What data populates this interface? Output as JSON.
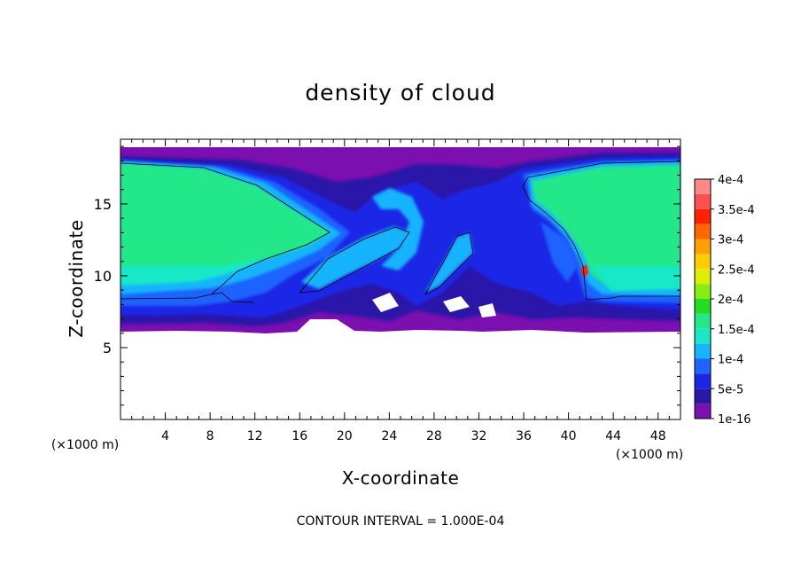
{
  "chart_data": {
    "type": "heatmap",
    "title": "density of cloud",
    "xlabel": "X-coordinate",
    "ylabel": "Z-coordinate",
    "x_unit": "(×1000 m)",
    "z_unit": "(×1000 m)",
    "xlim": [
      0,
      50
    ],
    "ylim": [
      0,
      19.5
    ],
    "x_ticks": [
      4,
      8,
      12,
      16,
      20,
      24,
      28,
      32,
      36,
      40,
      44,
      48
    ],
    "y_ticks": [
      5,
      10,
      15
    ],
    "grid": false,
    "colorbar": {
      "levels": [
        1e-16,
        2.5e-05,
        5e-05,
        7.5e-05,
        0.0001,
        0.000125,
        0.00015,
        0.000175,
        0.0002,
        0.000225,
        0.00025,
        0.000275,
        0.0003,
        0.000325,
        0.00035,
        0.000375,
        0.0004
      ],
      "tick_labels": [
        "1e-16",
        "5e-5",
        "1e-4",
        "1.5e-4",
        "2e-4",
        "2.5e-4",
        "3e-4",
        "3.5e-4",
        "4e-4"
      ],
      "colors": [
        "#7b0fb0",
        "#2a18a8",
        "#1c26e6",
        "#1e64ff",
        "#18b4ff",
        "#19e8c8",
        "#23e88a",
        "#22dd22",
        "#88ee11",
        "#ddee00",
        "#ffcc00",
        "#ffa000",
        "#ff6600",
        "#ff2200",
        "#ff5050",
        "#ff8888"
      ]
    },
    "contour_interval": 0.0001,
    "footer": "CONTOUR INTERVAL = 1.000E-04"
  }
}
